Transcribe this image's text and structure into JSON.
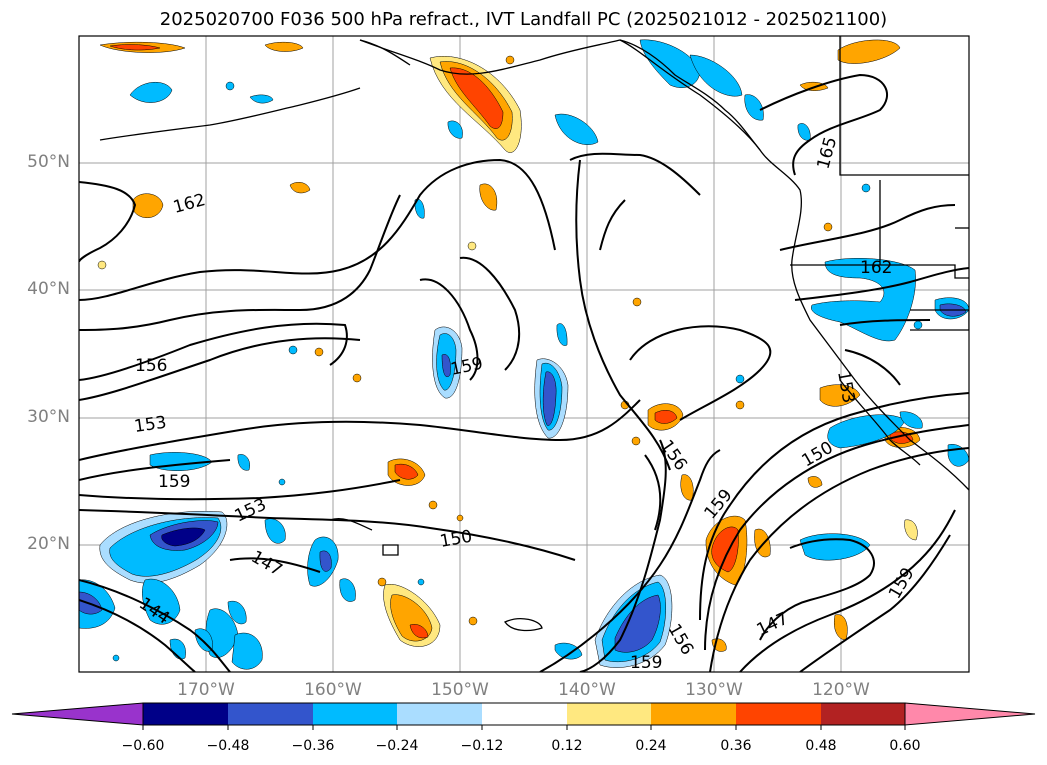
{
  "title": "2025020700 F036 500 hPa refract., IVT Landfall PC (2025021012 - 2025021100)",
  "map": {
    "lat_ticks": [
      "50°N",
      "40°N",
      "30°N",
      "20°N"
    ],
    "lon_ticks": [
      "170°W",
      "160°W",
      "150°W",
      "140°W",
      "130°W",
      "120°W"
    ],
    "contour_labels": [
      "162",
      "156",
      "153",
      "159",
      "159",
      "153",
      "147",
      "144",
      "150",
      "156",
      "159",
      "150",
      "159",
      "147",
      "159",
      "165",
      "162",
      "153"
    ]
  },
  "colorbar": {
    "ticks": [
      "−0.60",
      "−0.48",
      "−0.36",
      "−0.24",
      "−0.12",
      "0.12",
      "0.24",
      "0.36",
      "0.48",
      "0.60"
    ],
    "colors": [
      "#9933cc",
      "#000088",
      "#3355cc",
      "#00bbff",
      "#aaddff",
      "#ffffff",
      "#ffe880",
      "#ffa500",
      "#ff4400",
      "#b22222",
      "#ff88aa"
    ]
  }
}
